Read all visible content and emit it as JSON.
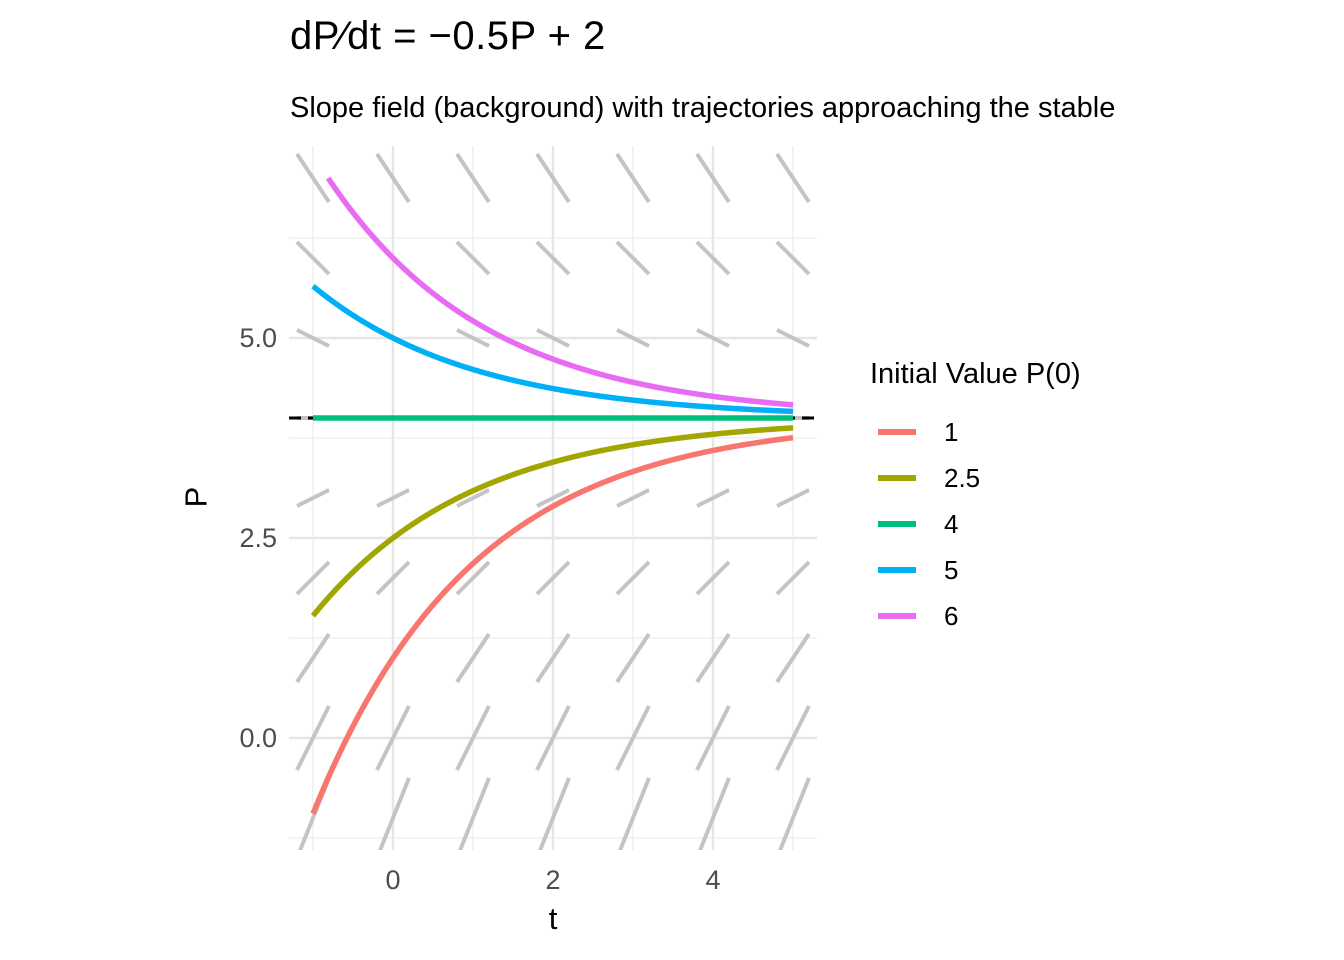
{
  "chart_data": {
    "type": "line",
    "title": "dP∕dt = −0.5P + 2",
    "subtitle": "Slope field (background) with trajectories approaching the stable",
    "xlabel": "t",
    "ylabel": "P",
    "xlim": [
      -1.3,
      5.3
    ],
    "ylim": [
      -1.4,
      7.4
    ],
    "x_major_ticks": [
      {
        "value": 0,
        "label": "0"
      },
      {
        "value": 2,
        "label": "2"
      },
      {
        "value": 4,
        "label": "4"
      }
    ],
    "x_minor_gridlines": [
      -1,
      1,
      3,
      5
    ],
    "y_major_ticks": [
      {
        "value": 0,
        "label": "0.0"
      },
      {
        "value": 2.5,
        "label": "2.5"
      },
      {
        "value": 5,
        "label": "5.0"
      }
    ],
    "y_minor_gridlines": [
      -1.25,
      1.25,
      3.75,
      6.25
    ],
    "grid": {
      "major_color": "#E6E6E6",
      "minor_color": "#EFEFEF",
      "grid_on": true
    },
    "tick_label_color": "#4D4D4D",
    "ode": {
      "expression": "dP/dt = -0.5*P + 2",
      "a": -0.5,
      "b": 2,
      "equilibrium": 4
    },
    "solution_formula": "P(t) = 4 + (P0 - 4) * exp(-0.5*t)",
    "t_domain": [
      -1,
      5
    ],
    "P_clip": [
      -1,
      7
    ],
    "equilibrium_line": {
      "P": 4,
      "linetype": "dashed",
      "color": "#000000"
    },
    "legend": {
      "title": "Initial Value P(0)",
      "position": "right"
    },
    "series": [
      {
        "name": "1",
        "P0": 1,
        "color": "#F8766D",
        "t": [
          -1,
          0,
          1,
          2,
          3,
          4,
          5
        ],
        "P": [
          -0.95,
          1,
          2.18,
          2.9,
          3.33,
          3.59,
          3.75
        ]
      },
      {
        "name": "2.5",
        "P0": 2.5,
        "color": "#A3A500",
        "t": [
          -1,
          0,
          1,
          2,
          3,
          4,
          5
        ],
        "P": [
          1.53,
          2.5,
          3.09,
          3.45,
          3.67,
          3.8,
          3.88
        ]
      },
      {
        "name": "4",
        "P0": 4,
        "color": "#00BF7D",
        "t": [
          -1,
          0,
          1,
          2,
          3,
          4,
          5
        ],
        "P": [
          4,
          4,
          4,
          4,
          4,
          4,
          4
        ]
      },
      {
        "name": "5",
        "P0": 5,
        "color": "#00B0F6",
        "t": [
          -1,
          0,
          1,
          2,
          3,
          4,
          5
        ],
        "P": [
          5.65,
          5,
          4.61,
          4.37,
          4.22,
          4.14,
          4.08
        ]
      },
      {
        "name": "6",
        "P0": 6,
        "color": "#E76BF3",
        "t": [
          -1,
          0,
          1,
          2,
          3,
          4,
          5
        ],
        "P": [
          7.3,
          6,
          5.21,
          4.74,
          4.45,
          4.27,
          4.16
        ]
      }
    ],
    "slope_field": {
      "t_points": [
        -1,
        0,
        1,
        2,
        3,
        4,
        5
      ],
      "P_points": [
        -1,
        0,
        1,
        2,
        3,
        4,
        5,
        6,
        7
      ],
      "segment_half_dt": 0.2,
      "slope_formula": "-0.5*P + 2",
      "color": "#C4C4C4"
    }
  }
}
